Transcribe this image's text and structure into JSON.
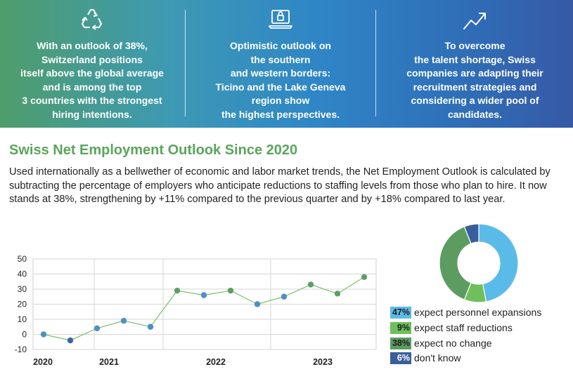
{
  "banner": {
    "colors": {
      "text": "#ffffff"
    },
    "panels": [
      {
        "icon": "recycle-icon",
        "lines": [
          "With an outlook of 38%,",
          "Switzerland positions",
          "itself above the global average",
          "and is among the top",
          "3 countries with the strongest",
          "hiring intentions."
        ]
      },
      {
        "icon": "laptop-lock-icon",
        "lines": [
          "Optimistic outlook on",
          "the southern",
          "and western borders:",
          "Ticino and the Lake Geneva",
          "region show",
          "the highest perspectives."
        ]
      },
      {
        "icon": "trend-up-icon",
        "lines": [
          "To overcome",
          "the talent shortage, Swiss",
          "companies are adapting their",
          "recruitment strategies and",
          "considering a wider pool of",
          "candidates."
        ]
      }
    ]
  },
  "section": {
    "title": "Swiss Net Employment Outlook Since 2020",
    "description": "Used internationally as a bellwether of economic and labor market trends, the Net Employment Outlook is calculated by subtracting the percentage of employers who anticipate reductions to staffing levels from those who plan to hire. It now stands at 38%, strengthening by +11% compared to the previous quarter and by +18% compared to last year."
  },
  "chart_data": [
    {
      "type": "line",
      "title": "",
      "xlabel": "",
      "ylabel": "",
      "x_tick_labels": [
        "2020",
        "2021",
        "2022",
        "2023"
      ],
      "y_ticks": [
        50,
        40,
        30,
        20,
        10,
        0,
        -10
      ],
      "ylim": [
        -10,
        50
      ],
      "grid": true,
      "series": [
        {
          "values": [
            0,
            -4,
            4,
            9,
            5,
            29,
            26,
            29,
            20,
            25,
            33,
            27,
            38
          ],
          "colors": [
            "#4e8fc0",
            "#3a64a8",
            "#4e8fc0",
            "#4e8fc0",
            "#4e8fc0",
            "#5f9e62",
            "#4e8fc0",
            "#5f9e62",
            "#4e8fc0",
            "#4e8fc0",
            "#5f9e62",
            "#5f9e62",
            "#5f9e62"
          ]
        }
      ],
      "line_color": "#7cc06b"
    },
    {
      "type": "pie",
      "style": "donut",
      "categories": [
        "expect personnel expansions",
        "expect staff reductions",
        "expect no change",
        "don't know"
      ],
      "values": [
        47,
        9,
        38,
        6
      ],
      "labels": [
        "47%",
        "9%",
        "38%",
        "6%"
      ],
      "colors": [
        "#5bbbe8",
        "#6ec05c",
        "#5c9c61",
        "#3a5e9c"
      ],
      "legend_position": "bottom"
    }
  ]
}
